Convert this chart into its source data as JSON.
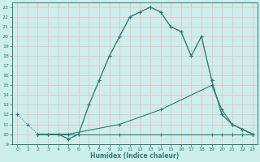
{
  "xlabel": "Humidex (Indice chaleur)",
  "bg_color": "#cceeed",
  "grid_color": "#e8c8c8",
  "line_color": "#2d7d72",
  "xlim": [
    -0.5,
    23.5
  ],
  "ylim": [
    9,
    23.5
  ],
  "xticks": [
    0,
    1,
    2,
    3,
    4,
    5,
    6,
    7,
    8,
    9,
    10,
    11,
    12,
    13,
    14,
    15,
    16,
    17,
    18,
    19,
    20,
    21,
    22,
    23
  ],
  "yticks": [
    9,
    10,
    11,
    12,
    13,
    14,
    15,
    16,
    17,
    18,
    19,
    20,
    21,
    22,
    23
  ],
  "curve1_x": [
    0,
    1,
    2,
    3,
    4,
    5,
    6,
    7,
    8,
    9,
    10,
    11,
    12,
    13,
    14,
    15,
    16,
    17,
    18,
    19,
    20,
    21,
    22,
    23
  ],
  "curve1_y": [
    12,
    11,
    10,
    10,
    10,
    9.5,
    10,
    13,
    15.5,
    18,
    20,
    22,
    22.5,
    23,
    22.5,
    21,
    20.5,
    18,
    20,
    15.5,
    12,
    11,
    10.5,
    10
  ],
  "curve2_x": [
    2,
    3,
    4,
    5,
    6,
    7,
    8,
    9,
    10,
    11,
    12,
    13,
    14,
    15,
    16,
    17,
    18,
    19,
    20,
    21,
    22,
    23
  ],
  "curve2_y": [
    10,
    10,
    10,
    9.5,
    10,
    13,
    15.5,
    18,
    20,
    22,
    22.5,
    23,
    22.5,
    21,
    20.5,
    18,
    20,
    15.5,
    12,
    11,
    10.5,
    10
  ],
  "curve3_x": [
    2,
    5,
    10,
    14,
    19,
    20,
    21,
    22,
    23
  ],
  "curve3_y": [
    10,
    10,
    11,
    12.5,
    15,
    12.5,
    11,
    10.5,
    10
  ],
  "curve4_x": [
    2,
    5,
    10,
    14,
    19,
    20,
    21,
    22,
    23
  ],
  "curve4_y": [
    10,
    10,
    10,
    10,
    10,
    10,
    10,
    10,
    10
  ]
}
